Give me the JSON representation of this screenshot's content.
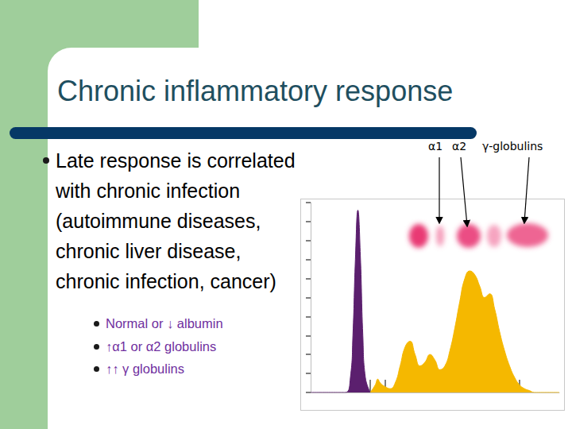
{
  "title": "Chronic inflammatory response",
  "bullets": [
    {
      "text": "Late response is correlated with chronic infection (autoimmune diseases, chronic liver disease, chronic infection, cancer)",
      "sub_bullets": [
        "Normal or ↓ albumin",
        "↑α1 or α2 globulins",
        "↑↑ γ globulins"
      ]
    }
  ],
  "annotations": [
    "α1",
    "α2",
    "γ-globulins"
  ],
  "chart_data": {
    "type": "area",
    "x": [
      0,
      10,
      14,
      16,
      17,
      18,
      19,
      20,
      21,
      22,
      24,
      26,
      27,
      28,
      30,
      32,
      34,
      36,
      38,
      40,
      42,
      44,
      46,
      48,
      50,
      52,
      54,
      56,
      58,
      60,
      62,
      64,
      66,
      68,
      70,
      72,
      74,
      76,
      78,
      80,
      82,
      84,
      86,
      88,
      90,
      95,
      100
    ],
    "series": [
      {
        "color": "#5b1f6e",
        "values": [
          0,
          0,
          0,
          8,
          30,
          70,
          96,
          72,
          30,
          8,
          0,
          null,
          null,
          null,
          null,
          null,
          null,
          null,
          null,
          null,
          null,
          null,
          null,
          null,
          null,
          null,
          null,
          null,
          null,
          null,
          null,
          null,
          null,
          null,
          null,
          null,
          null,
          null,
          null,
          null,
          null,
          null,
          null,
          null,
          null,
          null,
          null
        ]
      },
      {
        "color": "#f5b800",
        "values": [
          null,
          null,
          null,
          null,
          null,
          null,
          null,
          null,
          null,
          null,
          0,
          4,
          7,
          5,
          3,
          2,
          5,
          14,
          24,
          27,
          20,
          14,
          16,
          20,
          17,
          12,
          14,
          22,
          34,
          48,
          60,
          64,
          62,
          56,
          50,
          52,
          44,
          32,
          22,
          14,
          8,
          4,
          2,
          1,
          0,
          0,
          0
        ]
      }
    ],
    "xlim": [
      0,
      100
    ],
    "ylim": [
      0,
      100
    ],
    "xticks": [
      24,
      30,
      35,
      52,
      84
    ],
    "yticks": [
      0,
      10,
      20,
      30,
      40,
      50,
      60,
      70,
      80,
      90,
      100
    ],
    "grid": false,
    "tick_labels": false
  }
}
